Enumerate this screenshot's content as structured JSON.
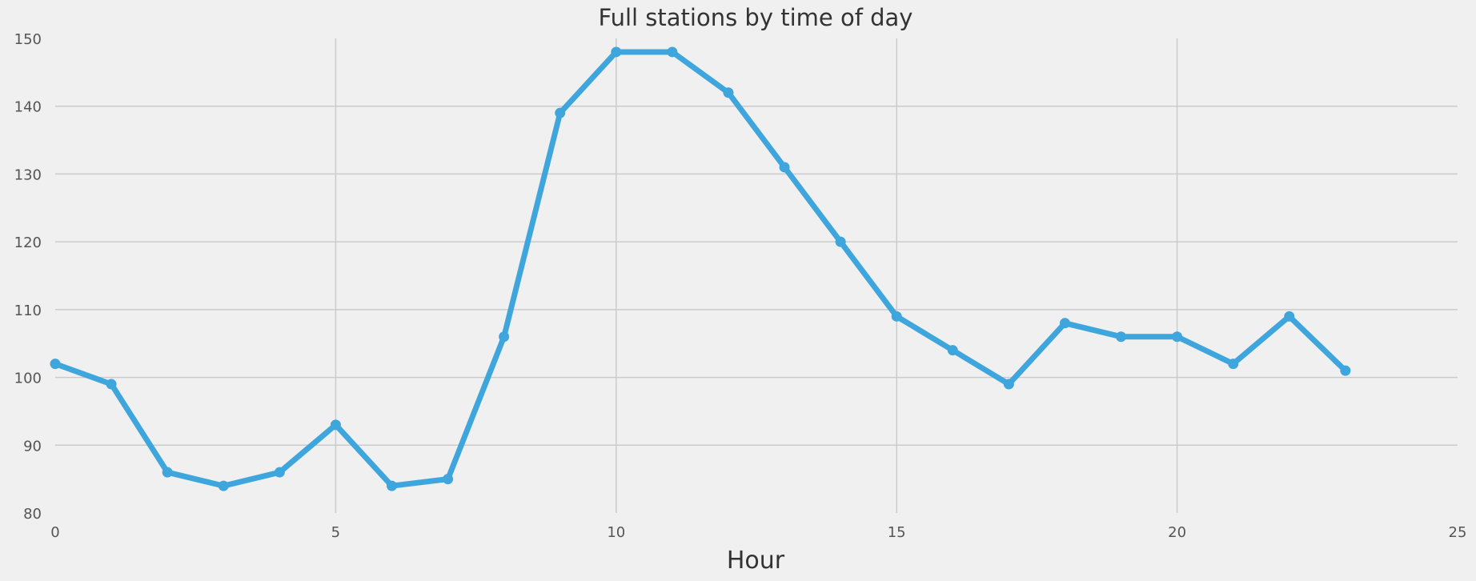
{
  "chart_data": {
    "type": "line",
    "title": "Full stations by time of day",
    "xlabel": "Hour",
    "ylabel": "",
    "xlim": [
      0,
      25
    ],
    "ylim": [
      80,
      150
    ],
    "x_ticks": [
      "0",
      "5",
      "10",
      "15",
      "20",
      "25"
    ],
    "y_ticks": [
      "80",
      "90",
      "100",
      "110",
      "120",
      "130",
      "140",
      "150"
    ],
    "grid": true,
    "legend": "none",
    "series": [
      {
        "color": "#3ea6dd",
        "x": [
          0,
          1,
          2,
          3,
          4,
          5,
          6,
          7,
          8,
          9,
          10,
          11,
          12,
          13,
          14,
          15,
          16,
          17,
          18,
          19,
          20,
          21,
          22,
          23
        ],
        "values": [
          102,
          99,
          86,
          84,
          86,
          93,
          84,
          85,
          106,
          139,
          148,
          148,
          142,
          131,
          120,
          109,
          104,
          99,
          108,
          106,
          106,
          102,
          109,
          101
        ]
      }
    ]
  }
}
